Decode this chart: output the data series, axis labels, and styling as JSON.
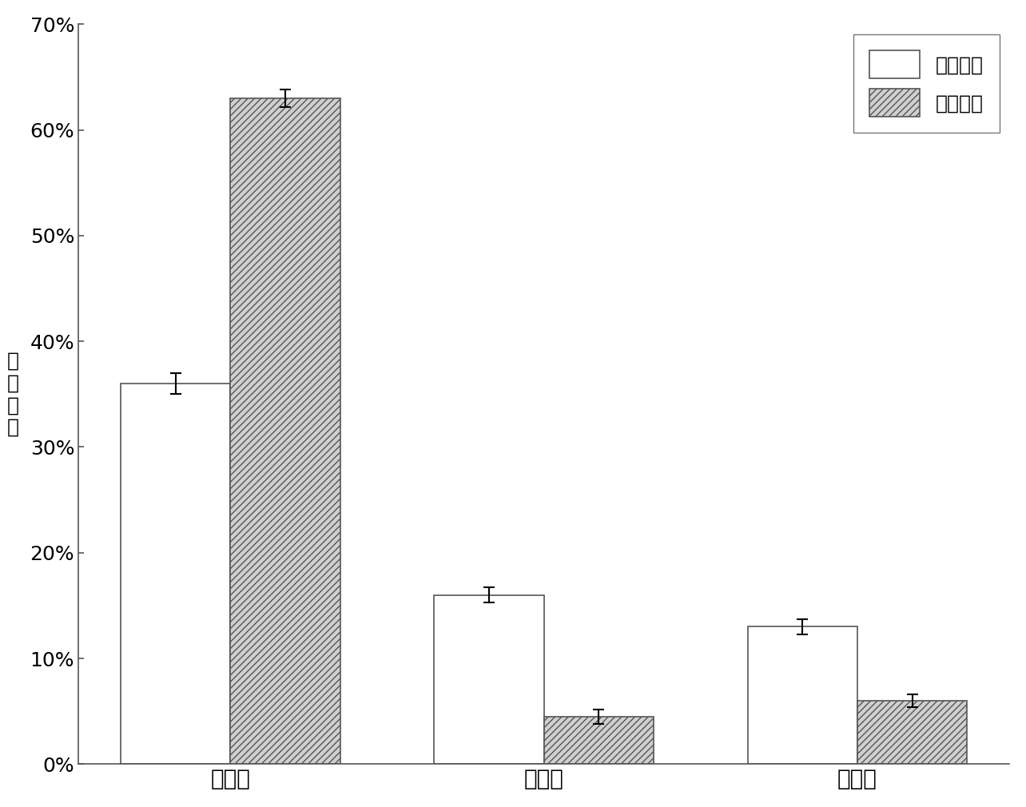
{
  "categories": [
    "葡聚糖",
    "木聚糖",
    "木质素"
  ],
  "before_values": [
    0.36,
    0.16,
    0.13
  ],
  "after_values": [
    0.63,
    0.045,
    0.06
  ],
  "before_errors": [
    0.01,
    0.007,
    0.007
  ],
  "after_errors": [
    0.008,
    0.007,
    0.006
  ],
  "legend_before": "预处理前",
  "legend_after": "预处理后",
  "ylabel": "质\n量\n分\n数",
  "ylim": [
    0,
    0.7
  ],
  "yticks": [
    0,
    0.1,
    0.2,
    0.3,
    0.4,
    0.5,
    0.6,
    0.7
  ],
  "ytick_labels": [
    "0%",
    "10%",
    "20%",
    "30%",
    "40%",
    "50%",
    "60%",
    "70%"
  ],
  "bar_width": 0.35,
  "background_color": "#ffffff",
  "before_color": "#ffffff",
  "after_color": "#d0d0d0",
  "edge_color": "#555555",
  "hatch_pattern": "////"
}
